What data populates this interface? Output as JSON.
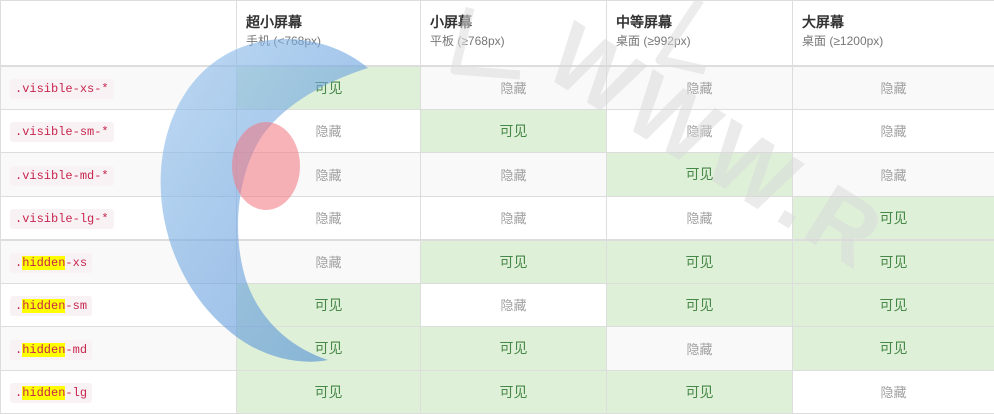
{
  "header": {
    "columns": [
      {
        "title": "",
        "subtitle": ""
      },
      {
        "title": "超小屏幕",
        "subtitle": "手机 (<768px)"
      },
      {
        "title": "小屏幕",
        "subtitle": "平板 (≥768px)"
      },
      {
        "title": "中等屏幕",
        "subtitle": "桌面 (≥992px)"
      },
      {
        "title": "大屏幕",
        "subtitle": "桌面 (≥1200px)"
      }
    ]
  },
  "labels": {
    "visible": "可见",
    "hidden": "隐藏"
  },
  "rows": [
    {
      "cls_prefix": ".",
      "cls_highlight": "",
      "cls_rest": "visible-xs-*",
      "cells": [
        true,
        false,
        false,
        false
      ]
    },
    {
      "cls_prefix": ".",
      "cls_highlight": "",
      "cls_rest": "visible-sm-*",
      "cells": [
        false,
        true,
        false,
        false
      ]
    },
    {
      "cls_prefix": ".",
      "cls_highlight": "",
      "cls_rest": "visible-md-*",
      "cells": [
        false,
        false,
        true,
        false
      ]
    },
    {
      "cls_prefix": ".",
      "cls_highlight": "",
      "cls_rest": "visible-lg-*",
      "cells": [
        false,
        false,
        false,
        true
      ]
    },
    {
      "cls_prefix": ".",
      "cls_highlight": "hidden",
      "cls_rest": "-xs",
      "cells": [
        false,
        true,
        true,
        true
      ]
    },
    {
      "cls_prefix": ".",
      "cls_highlight": "hidden",
      "cls_rest": "-sm",
      "cells": [
        true,
        false,
        true,
        true
      ]
    },
    {
      "cls_prefix": ".",
      "cls_highlight": "hidden",
      "cls_rest": "-md",
      "cells": [
        true,
        true,
        false,
        true
      ]
    },
    {
      "cls_prefix": ".",
      "cls_highlight": "hidden",
      "cls_rest": "-lg",
      "cells": [
        true,
        true,
        true,
        false
      ]
    }
  ],
  "colors": {
    "visible_bg": "#dff0d8",
    "visible_text": "#468847",
    "hidden_text": "#a0a0a0",
    "code_text": "#c7254e",
    "code_bg": "#f9f2f4",
    "highlight": "#ffff00"
  },
  "watermark": {
    "text": "WWW.R",
    "icon": "watermark-logo-icon"
  }
}
